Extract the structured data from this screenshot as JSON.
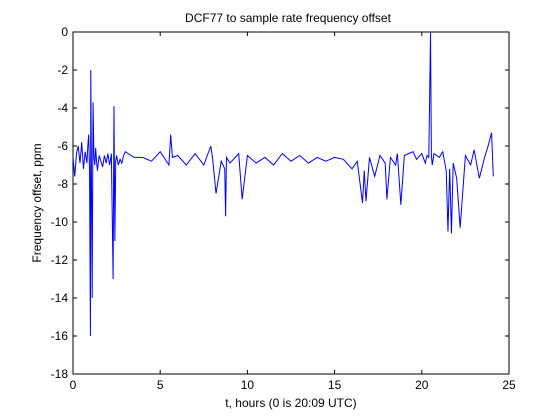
{
  "chart_data": {
    "type": "line",
    "title": "DCF77 to sample rate frequency offset",
    "xlabel": "t, hours (0 is 20:09 UTC)",
    "ylabel": "Frequency offset, ppm",
    "xlim": [
      0,
      25
    ],
    "ylim": [
      -18,
      0
    ],
    "xticks": [
      0,
      5,
      10,
      15,
      20,
      25
    ],
    "yticks": [
      0,
      -2,
      -4,
      -6,
      -8,
      -10,
      -12,
      -14,
      -16,
      -18
    ],
    "grid": false,
    "legend": false,
    "series": [
      {
        "color": "#0000ff",
        "x": [
          0,
          0.1,
          0.2,
          0.3,
          0.4,
          0.5,
          0.6,
          0.7,
          0.8,
          0.85,
          0.9,
          0.95,
          1.0,
          1.02,
          1.05,
          1.1,
          1.15,
          1.2,
          1.25,
          1.3,
          1.35,
          1.4,
          1.5,
          1.6,
          1.7,
          1.8,
          1.9,
          2.0,
          2.1,
          2.2,
          2.3,
          2.35,
          2.4,
          2.45,
          2.5,
          2.6,
          2.7,
          2.8,
          2.9,
          3.0,
          3.5,
          4.0,
          4.5,
          5.0,
          5.5,
          5.6,
          5.7,
          6.0,
          6.5,
          7.0,
          7.5,
          7.9,
          8.0,
          8.2,
          8.5,
          8.7,
          8.75,
          8.8,
          9.0,
          9.5,
          9.7,
          10.0,
          10.5,
          11.0,
          11.5,
          12.0,
          12.5,
          13.0,
          13.5,
          14.0,
          14.5,
          15.0,
          15.5,
          16.0,
          16.3,
          16.6,
          16.7,
          16.8,
          17.0,
          17.3,
          17.6,
          17.9,
          18.0,
          18.2,
          18.5,
          18.6,
          18.8,
          19.0,
          19.5,
          19.7,
          20.0,
          20.2,
          20.3,
          20.4,
          20.45,
          20.5,
          20.55,
          20.6,
          20.7,
          21.0,
          21.2,
          21.4,
          21.5,
          21.6,
          21.7,
          21.8,
          22.0,
          22.2,
          22.5,
          22.8,
          23.0,
          23.3,
          23.6,
          23.8,
          24.0,
          24.1
        ],
        "y": [
          -6.6,
          -7.6,
          -6.4,
          -6.0,
          -6.9,
          -5.8,
          -7.2,
          -6.3,
          -6.9,
          -6.0,
          -5.4,
          -7.5,
          -16.0,
          -2.0,
          -6.2,
          -14.0,
          -3.7,
          -6.6,
          -7.0,
          -6.1,
          -6.8,
          -7.3,
          -6.5,
          -6.8,
          -7.1,
          -6.5,
          -6.9,
          -6.4,
          -7.0,
          -6.4,
          -13.0,
          -3.9,
          -11.0,
          -6.8,
          -6.5,
          -7.0,
          -6.7,
          -6.9,
          -6.5,
          -6.3,
          -6.6,
          -6.6,
          -6.8,
          -6.3,
          -7.0,
          -5.4,
          -6.6,
          -6.5,
          -7.0,
          -6.4,
          -7.0,
          -6.0,
          -6.6,
          -8.5,
          -6.8,
          -7.2,
          -9.7,
          -6.6,
          -6.9,
          -6.4,
          -8.8,
          -6.5,
          -6.9,
          -6.6,
          -7.0,
          -6.4,
          -6.8,
          -6.5,
          -6.9,
          -6.6,
          -6.8,
          -6.6,
          -6.7,
          -7.2,
          -6.8,
          -9.0,
          -7.3,
          -8.9,
          -6.6,
          -7.6,
          -6.5,
          -6.9,
          -8.8,
          -6.6,
          -7.0,
          -6.4,
          -9.1,
          -6.5,
          -6.3,
          -6.7,
          -6.4,
          -6.9,
          -6.5,
          -6.6,
          -3.5,
          0.0,
          -6.5,
          -7.0,
          -6.4,
          -6.6,
          -6.3,
          -7.3,
          -10.5,
          -7.2,
          -10.6,
          -6.9,
          -7.7,
          -10.3,
          -6.5,
          -7.0,
          -6.2,
          -7.7,
          -6.6,
          -6.0,
          -5.3,
          -7.6
        ]
      }
    ]
  }
}
